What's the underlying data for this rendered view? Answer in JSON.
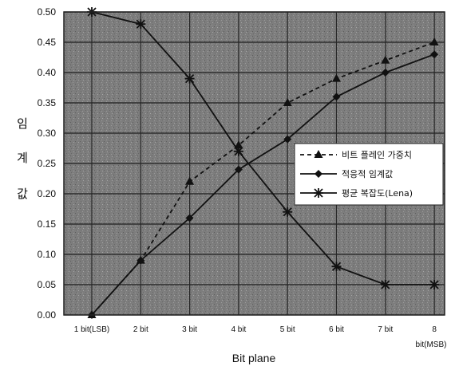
{
  "chart_data": {
    "type": "line",
    "categories": [
      "1 bit(LSB)",
      "2 bit",
      "3 bit",
      "4 bit",
      "5 bit",
      "6 bit",
      "7 bit",
      "8 bit(MSB)"
    ],
    "series": [
      {
        "name": "비트 플레인 가중치",
        "marker": "triangle",
        "style": "dashed",
        "values": [
          0.0,
          0.09,
          0.22,
          0.28,
          0.35,
          0.39,
          0.42,
          0.45
        ]
      },
      {
        "name": "적응적 임계값",
        "marker": "diamond",
        "style": "solid",
        "values": [
          0.0,
          0.09,
          0.16,
          0.24,
          0.29,
          0.36,
          0.4,
          0.43
        ]
      },
      {
        "name": "평균 복잡도(Lena)",
        "marker": "asterisk",
        "style": "solid",
        "values": [
          0.5,
          0.48,
          0.39,
          0.27,
          0.17,
          0.08,
          0.05,
          0.05
        ]
      }
    ],
    "xlabel": "Bit plane",
    "ylabel": "임계값",
    "ylabel_chars": [
      "임",
      "계",
      "값"
    ],
    "ylim": [
      0.0,
      0.5
    ],
    "yticks": [
      "0.00",
      "0.05",
      "0.10",
      "0.15",
      "0.20",
      "0.25",
      "0.30",
      "0.35",
      "0.40",
      "0.45",
      "0.50"
    ],
    "grid": true,
    "legend_position": "right"
  }
}
